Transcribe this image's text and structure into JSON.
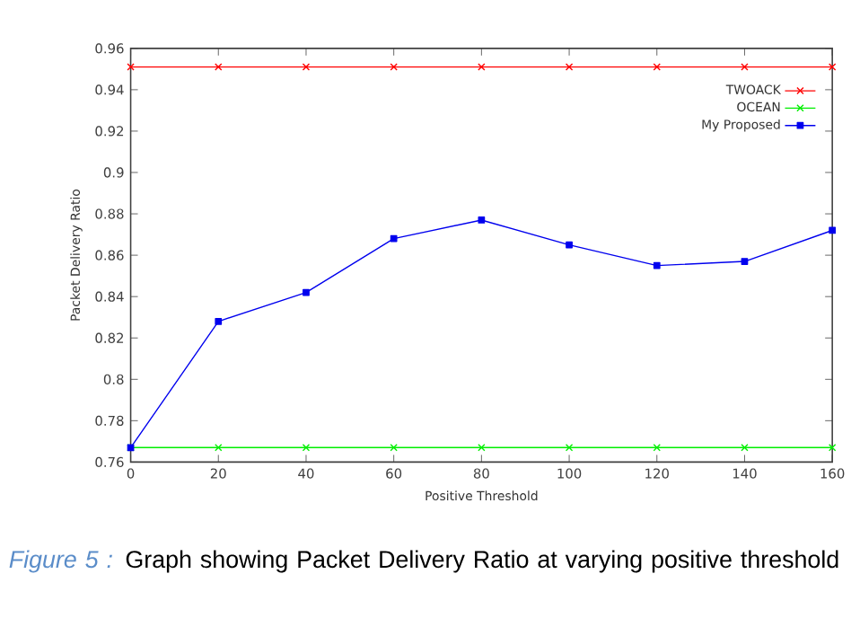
{
  "chart_data": {
    "type": "line",
    "xlabel": "Positive Threshold",
    "ylabel": "Packet Delivery Ratio",
    "x": [
      0,
      20,
      40,
      60,
      80,
      100,
      120,
      140,
      160
    ],
    "series": [
      {
        "name": "TWOACK",
        "color": "#ff0000",
        "marker": "cross",
        "values": [
          0.951,
          0.951,
          0.951,
          0.951,
          0.951,
          0.951,
          0.951,
          0.951,
          0.951
        ]
      },
      {
        "name": "OCEAN",
        "color": "#00ee00",
        "marker": "cross",
        "values": [
          0.767,
          0.767,
          0.767,
          0.767,
          0.767,
          0.767,
          0.767,
          0.767,
          0.767
        ]
      },
      {
        "name": "My Proposed",
        "color": "#0000ee",
        "marker": "square",
        "values": [
          0.767,
          0.828,
          0.842,
          0.868,
          0.877,
          0.865,
          0.855,
          0.857,
          0.872
        ]
      }
    ],
    "xlim": [
      0,
      160
    ],
    "xticks": [
      0,
      20,
      40,
      60,
      80,
      100,
      120,
      140,
      160
    ],
    "ylim": [
      0.76,
      0.96
    ],
    "yticks": [
      0.76,
      0.78,
      0.8,
      0.82,
      0.84,
      0.86,
      0.88,
      0.9,
      0.92,
      0.94,
      0.96
    ],
    "legend": "top right",
    "line_style": "solid",
    "annotations": [
      "Figure 5 :",
      "Graph showing Packet Delivery Ratio at varying positive threshold"
    ]
  }
}
